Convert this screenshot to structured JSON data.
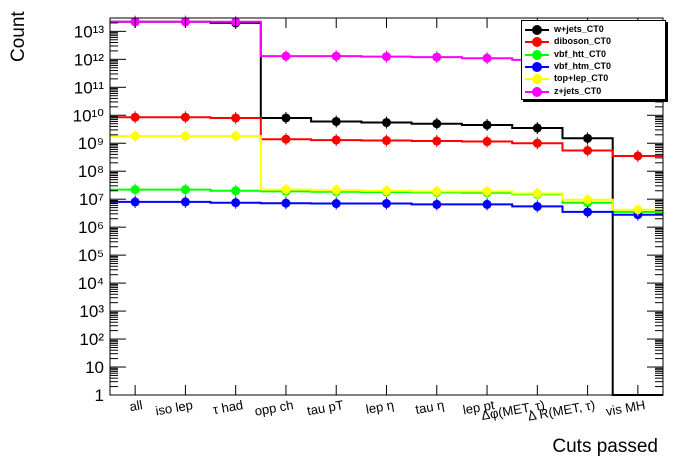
{
  "chart_data": {
    "type": "line",
    "ylabel": "Count",
    "xlabel": "Cuts passed",
    "yscale": "log",
    "ylim": [
      1,
      30000000000000
    ],
    "ytick_labels": [
      "1",
      "10",
      "10²",
      "10³",
      "10⁴",
      "10⁵",
      "10⁶",
      "10⁷",
      "10⁸",
      "10⁹",
      "10¹⁰",
      "10¹¹",
      "10¹²",
      "10¹³"
    ],
    "categories": [
      "all",
      "iso lep",
      "τ had",
      "opp ch",
      "tau pT",
      "lep η",
      "tau η",
      "lep pt",
      "Δφ(MET, τ)",
      "Δ R(MET, τ)",
      "vis MH"
    ],
    "grid": false,
    "legend_position": "top-right",
    "series": [
      {
        "name": "w+jets_CT0",
        "color": "#000000",
        "values": [
          22000000000000,
          22000000000000,
          20000000000000,
          8000000000,
          6000000000,
          5500000000,
          5000000000,
          4500000000,
          3500000000,
          1500000000,
          1
        ]
      },
      {
        "name": "diboson_CT0",
        "color": "#ff0000",
        "values": [
          8500000000,
          8500000000,
          8000000000,
          1400000000,
          1300000000,
          1250000000,
          1200000000,
          1150000000,
          1000000000,
          550000000,
          350000000
        ]
      },
      {
        "name": "vbf_htt_CT0",
        "color": "#00ff00",
        "values": [
          22000000,
          22000000,
          20000000,
          19000000,
          18500000,
          18000000,
          17500000,
          17000000,
          15000000,
          7500000,
          3500000
        ]
      },
      {
        "name": "vbf_htm_CT0",
        "color": "#0000ff",
        "values": [
          8000000,
          8000000,
          7500000,
          7200000,
          7000000,
          7000000,
          6500000,
          6500000,
          5500000,
          3500000,
          2800000
        ]
      },
      {
        "name": "top+lep_CT0",
        "color": "#ffff00",
        "values": [
          1800000000,
          1800000000,
          1800000000,
          22000000,
          21000000,
          20000000,
          19000000,
          19000000,
          16000000,
          9500000,
          4200000
        ]
      },
      {
        "name": "z+jets_CT0",
        "color": "#ff00ff",
        "values": [
          22000000000000,
          22000000000000,
          22000000000000,
          1300000000000,
          1300000000000,
          1250000000000,
          1200000000000,
          1100000000000,
          950000000000,
          900000000000,
          850000000000
        ]
      }
    ]
  }
}
